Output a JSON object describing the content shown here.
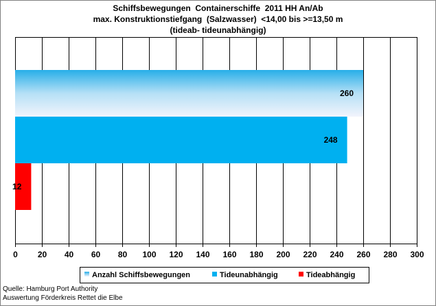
{
  "chart_data": {
    "type": "bar",
    "orientation": "horizontal",
    "title_lines": [
      "Schiffsbewegungen  Containerschiffe  2011 HH An/Ab",
      "max. Konstruktionstiefgang  (Salzwasser)  <14,00 bis >=13,50 m",
      "(tideab- tideunabhängig)"
    ],
    "series": [
      {
        "name": "Anzahl Schiffsbewegungen",
        "value": 260,
        "color": "#9FD4F0"
      },
      {
        "name": "Tideunabhängig",
        "value": 248,
        "color": "#00B0F0"
      },
      {
        "name": "Tideabhängig",
        "value": 12,
        "color": "#FF0000"
      }
    ],
    "xlim": [
      0,
      300
    ],
    "x_ticks": [
      0,
      20,
      40,
      60,
      80,
      100,
      120,
      140,
      160,
      180,
      200,
      220,
      240,
      260,
      280,
      300
    ],
    "grid": true,
    "legend_position": "bottom"
  },
  "source_lines": [
    "Quelle: Hamburg Port Authority",
    "Auswertung Förderkreis Rettet die Elbe"
  ]
}
